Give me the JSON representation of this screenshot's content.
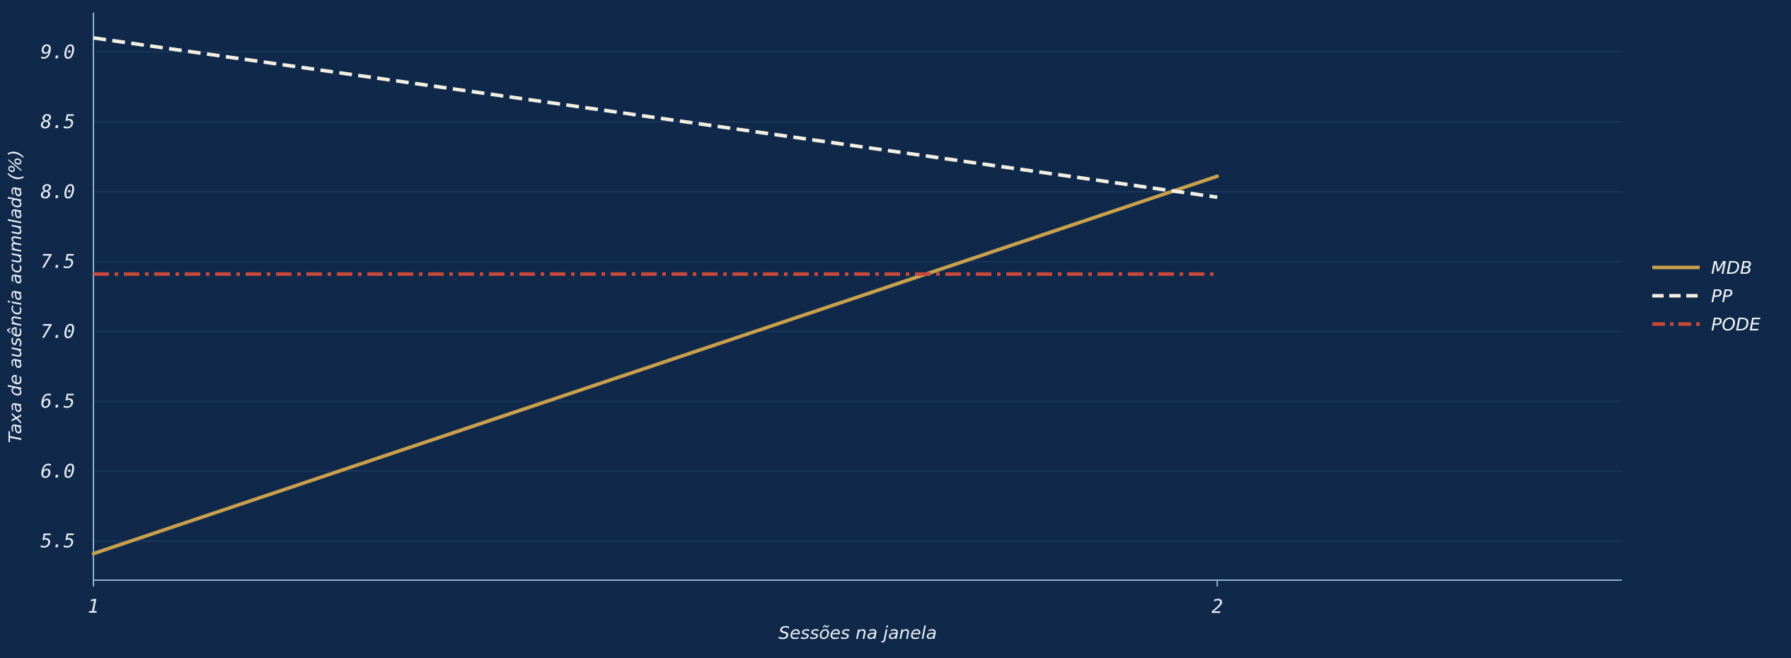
{
  "chart_data": {
    "type": "line",
    "xlabel": "Sessões na janela",
    "ylabel": "Taxa de ausência acumulada (%)",
    "x": [
      1,
      2
    ],
    "x_ticks": [
      "1",
      "2"
    ],
    "xlim": [
      1,
      2.36
    ],
    "y_ticks": [
      "5.5",
      "6.0",
      "6.5",
      "7.0",
      "7.5",
      "8.0",
      "8.5",
      "9.0"
    ],
    "ylim": [
      5.22,
      9.28
    ],
    "grid": true,
    "legend_position": "right",
    "series": [
      {
        "name": "MDB",
        "values": [
          5.41,
          8.11
        ],
        "color": "#c9a04e",
        "style": "solid"
      },
      {
        "name": "PP",
        "values": [
          9.1,
          7.96
        ],
        "color": "#f3efe3",
        "style": "dashed"
      },
      {
        "name": "PODE",
        "values": [
          7.41,
          7.41
        ],
        "color": "#c8493a",
        "style": "dashdot"
      }
    ]
  },
  "colors": {
    "background": "#10294a",
    "grid": "#1b3a5e",
    "axis": "#8fb3d0",
    "text": "#e8eef6"
  }
}
